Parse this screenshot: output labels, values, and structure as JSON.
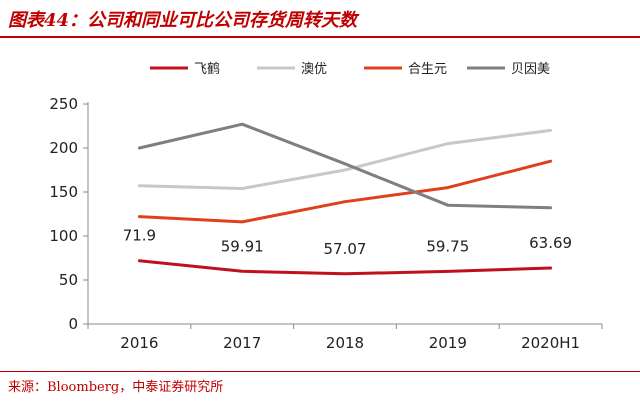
{
  "header": {
    "title": "图表44：公司和同业可比公司存货周转天数"
  },
  "footer": {
    "source": "来源：Bloomberg，中泰证券研究所"
  },
  "chart_data": {
    "type": "line",
    "categories": [
      "2016",
      "2017",
      "2018",
      "2019",
      "2020H1"
    ],
    "ylim": [
      0,
      250
    ],
    "yticks": [
      0,
      50,
      100,
      150,
      200,
      250
    ],
    "grid": false,
    "legend_position": "top",
    "series": [
      {
        "name": "飞鹤",
        "color": "#c0101e",
        "values": [
          71.9,
          59.91,
          57.07,
          59.75,
          63.69
        ],
        "data_labels": [
          "71.9",
          "59.91",
          "57.07",
          "59.75",
          "63.69"
        ]
      },
      {
        "name": "澳优",
        "color": "#c8c8c8",
        "values": [
          157,
          154,
          175,
          205,
          220
        ]
      },
      {
        "name": "合生元",
        "color": "#e0401e",
        "values": [
          122,
          116,
          139,
          155,
          185
        ]
      },
      {
        "name": "贝因美",
        "color": "#7f7f7f",
        "values": [
          200,
          227,
          182,
          135,
          132
        ]
      }
    ]
  }
}
